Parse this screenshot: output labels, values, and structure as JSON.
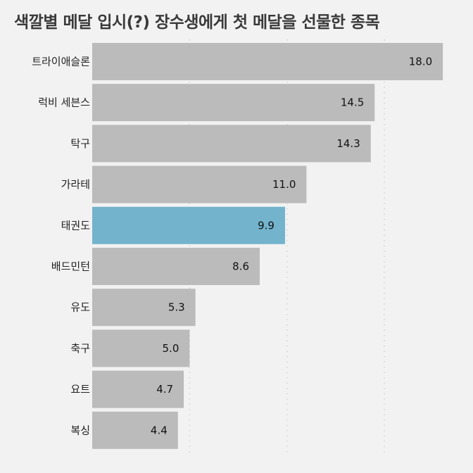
{
  "chart_data": {
    "type": "bar",
    "orientation": "horizontal",
    "title": "색깔별 메달 입시(?) 장수생에게 첫 메달을 선물한 종목",
    "categories": [
      "트라이애슬론",
      "럭비 세븐스",
      "탁구",
      "가라테",
      "태권도",
      "배드민턴",
      "유도",
      "축구",
      "요트",
      "복싱"
    ],
    "values": [
      18.0,
      14.5,
      14.3,
      11.0,
      9.9,
      8.6,
      5.3,
      5.0,
      4.7,
      4.4
    ],
    "value_labels": [
      "18.0",
      "14.5",
      "14.3",
      "11.0",
      "9.9",
      "8.6",
      "5.3",
      "5.0",
      "4.7",
      "4.4"
    ],
    "highlight_category": "태권도",
    "xlim": [
      0,
      18.5
    ],
    "grid": true,
    "colors": {
      "bar": "#bbbbbb",
      "highlight": "#73b3cc",
      "background": "#f2f2f2",
      "grid": "#d2d2d2"
    }
  }
}
